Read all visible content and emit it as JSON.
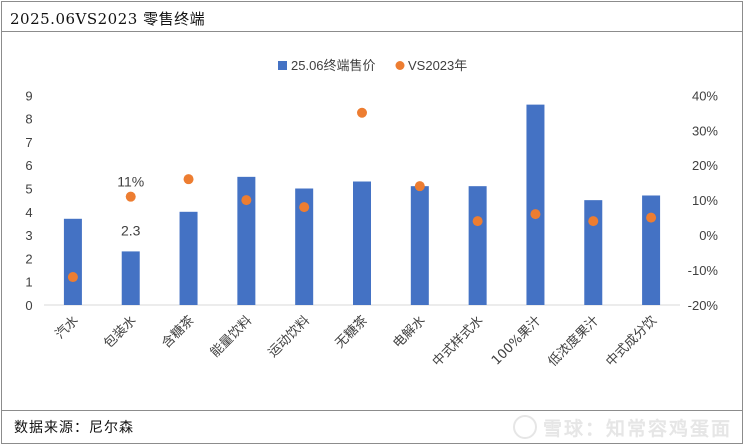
{
  "header": {
    "title": "2025.06VS2023 零售终端"
  },
  "footer": {
    "source": "数据来源：尼尔森",
    "watermark": "雪球：知常容鸡蛋面"
  },
  "colors": {
    "bar": "#4472c4",
    "dot": "#ed7d31",
    "border": "#8c8c8c"
  },
  "chart_data": {
    "type": "bar",
    "categories": [
      "汽水",
      "包装水",
      "含糖茶",
      "能量饮料",
      "运动饮料",
      "无糖茶",
      "电解水",
      "中式样式水",
      "100%果汁",
      "低浓度果汁",
      "中式成分饮"
    ],
    "series": [
      {
        "name": "25.06终端售价",
        "type": "bar",
        "axis": "left",
        "values": [
          3.7,
          2.3,
          4.0,
          5.5,
          5.0,
          5.3,
          5.1,
          5.1,
          8.6,
          4.5,
          4.7
        ]
      },
      {
        "name": "VS2023年",
        "type": "scatter",
        "axis": "right",
        "unit": "%",
        "values": [
          -12,
          11,
          16,
          10,
          8,
          35,
          14,
          4,
          6,
          4,
          5
        ]
      }
    ],
    "data_labels": [
      {
        "category": "包装水",
        "series": "25.06终端售价",
        "text": "2.3"
      },
      {
        "category": "包装水",
        "series": "VS2023年",
        "text": "11%"
      }
    ],
    "y_left": {
      "range": [
        0,
        9
      ],
      "ticks": [
        "0",
        "1",
        "2",
        "3",
        "4",
        "5",
        "6",
        "7",
        "8",
        "9"
      ]
    },
    "y_right": {
      "range": [
        -20,
        40
      ],
      "ticks": [
        "-20%",
        "-10%",
        "0%",
        "10%",
        "20%",
        "30%",
        "40%"
      ]
    },
    "grid": false,
    "legend": "top"
  }
}
